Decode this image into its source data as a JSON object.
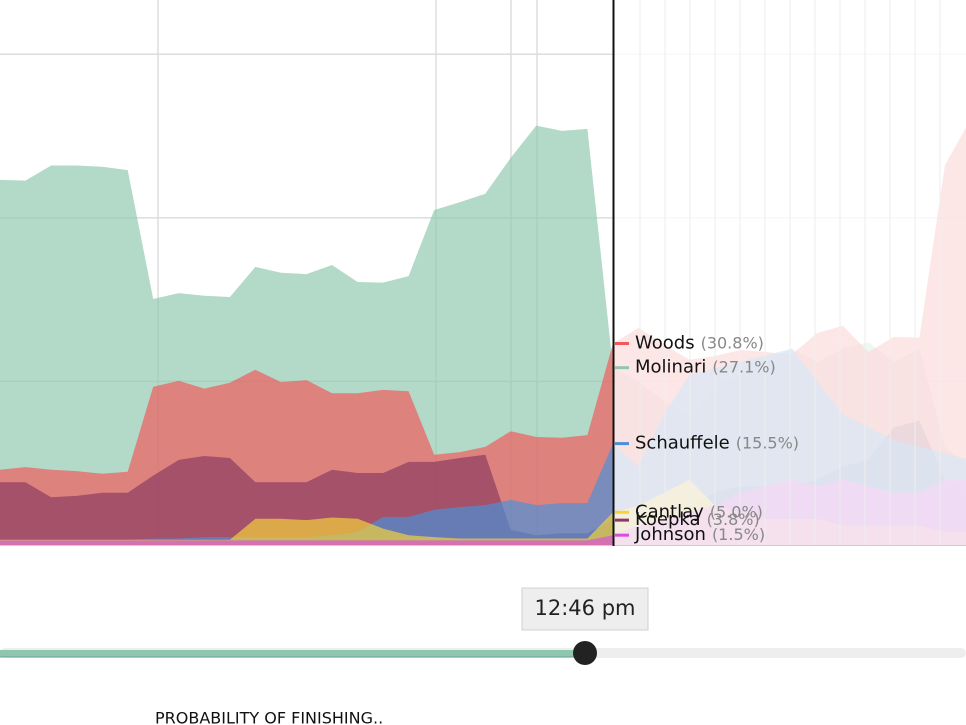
{
  "chart_data": {
    "type": "area",
    "ylim": [
      0,
      83.3
    ],
    "yticks": [
      25,
      50,
      75
    ],
    "grid": true,
    "current_index": 24,
    "series": [
      {
        "name": "Molinari",
        "color": "#8fc7ae",
        "value_label": "(27.1%)",
        "values": [
          55.8,
          55.7,
          58.0,
          58.0,
          57.8,
          57.3,
          37.6,
          38.5,
          38.1,
          37.9,
          42.5,
          41.6,
          41.4,
          42.8,
          40.2,
          40.1,
          41.1,
          51.2,
          52.4,
          53.7,
          59.2,
          64.1,
          63.3,
          63.6,
          27.1,
          25,
          22,
          20,
          24,
          26,
          28,
          30,
          28,
          30,
          31,
          28,
          30,
          15,
          12
        ]
      },
      {
        "name": "Woods",
        "color": "#f0585a",
        "value_label": "(30.8%)",
        "values": [
          11.5,
          11.9,
          11.5,
          11.3,
          10.9,
          11.2,
          24.2,
          25.1,
          23.9,
          24.8,
          26.8,
          24.9,
          25.2,
          23.2,
          23.2,
          23.7,
          23.5,
          13.8,
          14.2,
          15.0,
          17.4,
          16.5,
          16.4,
          16.8,
          30.8,
          33.2,
          30.6,
          28.3,
          28.9,
          29.8,
          29.5,
          29.1,
          32.4,
          33.5,
          29.5,
          31.8,
          31.7,
          58.1,
          65.0
        ]
      },
      {
        "name": "Koepka",
        "color": "#8b3a62",
        "value_label": "(3.8%)",
        "values": [
          9.6,
          9.6,
          7.3,
          7.5,
          8.0,
          8.0,
          10.6,
          13.0,
          13.6,
          13.3,
          9.6,
          9.6,
          9.6,
          11.5,
          11.0,
          11.0,
          12.7,
          12.7,
          13.3,
          13.8,
          2.3,
          1.5,
          1.8,
          1.8,
          3.8,
          4,
          5,
          6,
          8,
          9,
          9,
          9,
          10,
          12,
          13,
          18,
          19,
          10,
          8
        ]
      },
      {
        "name": "Schauffele",
        "color": "#4a90d9",
        "value_label": "(15.5%)",
        "values": [
          0.8,
          0.8,
          0.8,
          0.8,
          0.8,
          0.8,
          1.0,
          1.0,
          1.2,
          1.2,
          1.2,
          1.2,
          1.2,
          1.5,
          2.0,
          4.3,
          4.3,
          5.4,
          5.8,
          6.1,
          6.9,
          6.1,
          6.4,
          6.4,
          15.5,
          12,
          20,
          26,
          27,
          28,
          29,
          30,
          25,
          20,
          18,
          16,
          15,
          14,
          13
        ]
      },
      {
        "name": "Cantlay",
        "color": "#f5d33a",
        "value_label": "(5.0%)",
        "values": [
          0.8,
          0.8,
          0.8,
          0.8,
          0.8,
          0.8,
          0.8,
          0.8,
          0.8,
          0.8,
          4.0,
          4.0,
          3.8,
          4.2,
          4.0,
          2.5,
          1.5,
          1.2,
          1.0,
          1.0,
          1.0,
          1.0,
          1.0,
          1.0,
          5.0,
          6,
          8,
          10,
          6,
          5,
          4,
          4,
          4,
          3,
          3,
          3,
          3,
          2,
          2
        ]
      },
      {
        "name": "Johnson",
        "color": "#d94fd9",
        "value_label": "(1.5%)",
        "values": [
          0.7,
          0.7,
          0.7,
          0.7,
          0.7,
          0.7,
          0.7,
          0.7,
          0.7,
          0.7,
          0.7,
          0.7,
          0.7,
          0.7,
          0.7,
          0.7,
          0.7,
          0.7,
          0.7,
          0.7,
          0.7,
          0.7,
          0.7,
          0.7,
          1.5,
          3,
          4,
          5,
          6,
          8,
          9,
          10,
          9,
          10,
          9,
          8,
          8,
          10,
          10
        ]
      }
    ]
  },
  "time_label": "12:46 pm",
  "footer": "PROBABILITY OF FINISHING.."
}
